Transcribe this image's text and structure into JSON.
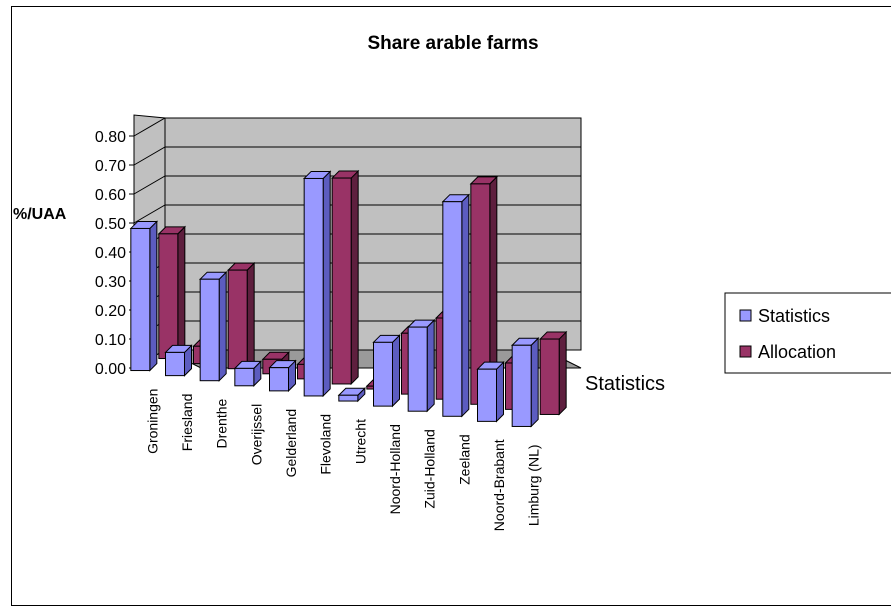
{
  "chart_data": {
    "type": "bar",
    "title": "Share arable farms",
    "ylabel": "%/UAA",
    "depth_axis_label": "Statistics",
    "ylim": [
      0,
      0.8
    ],
    "yticks": [
      "0.00",
      "0.10",
      "0.20",
      "0.30",
      "0.40",
      "0.50",
      "0.60",
      "0.70",
      "0.80"
    ],
    "categories": [
      "Groningen",
      "Friesland",
      "Drenthe",
      "Overijssel",
      "Gelderland",
      "Flevoland",
      "Utrecht",
      "Noord-Holland",
      "Zuid-Holland",
      "Zeeland",
      "Noord-Brabant",
      "Limburg (NL)"
    ],
    "series": [
      {
        "name": "Statistics",
        "color": "#9999ff",
        "values": [
          0.49,
          0.08,
          0.35,
          0.06,
          0.08,
          0.75,
          0.02,
          0.22,
          0.29,
          0.74,
          0.18,
          0.28
        ]
      },
      {
        "name": "Allocation",
        "color": "#993366",
        "values": [
          0.43,
          0.06,
          0.34,
          0.05,
          0.05,
          0.71,
          0.01,
          0.21,
          0.28,
          0.76,
          0.16,
          0.26
        ]
      }
    ],
    "grid": true,
    "legend_position": "right",
    "style": "3d-clustered"
  }
}
